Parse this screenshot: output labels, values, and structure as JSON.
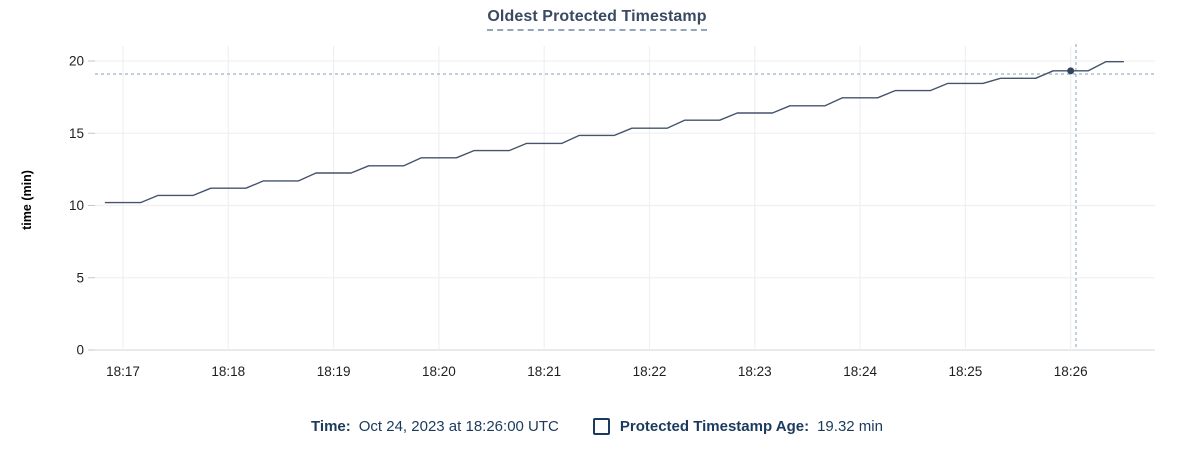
{
  "title": "Oldest Protected Timestamp",
  "legend": {
    "time_label": "Time:",
    "time_value": "Oct 24, 2023 at 18:26:00 UTC",
    "series_label": "Protected Timestamp Age:",
    "series_value": "19.32 min",
    "checkbox_icon": "checkbox-outline-icon"
  },
  "colors": {
    "title_text": "#394a63",
    "legend_text": "#1b3a5c",
    "line": "#44546c",
    "hover_dot": "#33445f",
    "crosshair": "#9cb1c5",
    "gridline": "#f0f0f0",
    "zero_line": "#e4e4e4",
    "tick_mark": "#c6c6c6",
    "axis_text": "#1f1f1f"
  },
  "chart_data": {
    "type": "line",
    "title": "Oldest Protected Timestamp",
    "xlabel": "",
    "ylabel": "time (min)",
    "ylim": [
      0,
      20
    ],
    "y_ticks": [
      0,
      5,
      10,
      15,
      20
    ],
    "x_ticks": [
      "18:17",
      "18:18",
      "18:19",
      "18:20",
      "18:21",
      "18:22",
      "18:23",
      "18:24",
      "18:25",
      "18:26"
    ],
    "grid": true,
    "legend_position": "bottom",
    "series": [
      {
        "name": "Protected Timestamp Age",
        "unit": "min",
        "x": [
          "18:16:50",
          "18:17:00",
          "18:17:10",
          "18:17:20",
          "18:17:30",
          "18:17:40",
          "18:17:50",
          "18:18:00",
          "18:18:10",
          "18:18:20",
          "18:18:30",
          "18:18:40",
          "18:18:50",
          "18:19:00",
          "18:19:10",
          "18:19:20",
          "18:19:30",
          "18:19:40",
          "18:19:50",
          "18:20:00",
          "18:20:10",
          "18:20:20",
          "18:20:30",
          "18:20:40",
          "18:20:50",
          "18:21:00",
          "18:21:10",
          "18:21:20",
          "18:21:30",
          "18:21:40",
          "18:21:50",
          "18:22:00",
          "18:22:10",
          "18:22:20",
          "18:22:30",
          "18:22:40",
          "18:22:50",
          "18:23:00",
          "18:23:10",
          "18:23:20",
          "18:23:30",
          "18:23:40",
          "18:23:50",
          "18:24:00",
          "18:24:10",
          "18:24:20",
          "18:24:30",
          "18:24:40",
          "18:24:50",
          "18:25:00",
          "18:25:10",
          "18:25:20",
          "18:25:30",
          "18:25:40",
          "18:25:50",
          "18:26:00",
          "18:26:10",
          "18:26:20",
          "18:26:30"
        ],
        "y": [
          10.2,
          10.2,
          10.2,
          10.7,
          10.7,
          10.7,
          11.2,
          11.2,
          11.2,
          11.7,
          11.7,
          11.7,
          12.25,
          12.25,
          12.25,
          12.75,
          12.75,
          12.75,
          13.3,
          13.3,
          13.3,
          13.8,
          13.8,
          13.8,
          14.3,
          14.3,
          14.3,
          14.85,
          14.85,
          14.85,
          15.35,
          15.35,
          15.35,
          15.9,
          15.9,
          15.9,
          16.4,
          16.4,
          16.4,
          16.9,
          16.9,
          16.9,
          17.45,
          17.45,
          17.45,
          17.95,
          17.95,
          17.95,
          18.45,
          18.45,
          18.45,
          18.8,
          18.8,
          18.8,
          19.32,
          19.32,
          19.32,
          19.95,
          19.95
        ]
      }
    ],
    "hover": {
      "point_time": "18:26:00",
      "point_value": 19.32,
      "crosshair_time": "18:26:03",
      "crosshair_value": 19.1
    }
  }
}
